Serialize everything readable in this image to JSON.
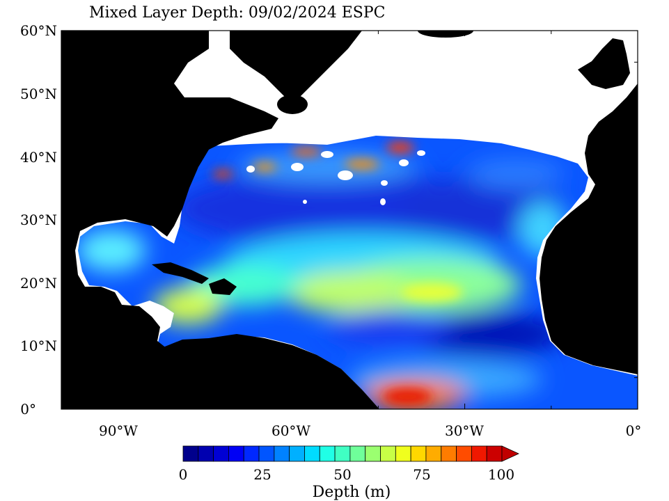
{
  "map": {
    "title": "Mixed Layer Depth: 09/02/2024 ESPC",
    "lat_labels": [
      "60°N",
      "50°N",
      "40°N",
      "30°N",
      "20°N",
      "10°N",
      "0°"
    ],
    "lon_labels": [
      "90°W",
      "60°W",
      "30°W",
      "0°"
    ],
    "region": "North Atlantic"
  },
  "colorbar": {
    "label": "Depth (m)",
    "tick_labels": [
      "0",
      "25",
      "50",
      "75",
      "100"
    ],
    "min": 0,
    "max": 100,
    "extend": "max",
    "colors": [
      "#00008c",
      "#0000b0",
      "#0000d4",
      "#0000f5",
      "#0028ff",
      "#0055ff",
      "#0082ff",
      "#00b0ff",
      "#00dcff",
      "#20ffe6",
      "#40ffc3",
      "#6fff9a",
      "#9bff70",
      "#c8ff46",
      "#f0ff1e",
      "#ffd800",
      "#ffac00",
      "#ff7c00",
      "#ff4c00",
      "#f01800",
      "#cc0000",
      "#c00000"
    ]
  },
  "colors": {
    "land": "#000000",
    "nodata": "#ffffff",
    "shallow": "#0000b0",
    "deep": "#ff2000"
  }
}
